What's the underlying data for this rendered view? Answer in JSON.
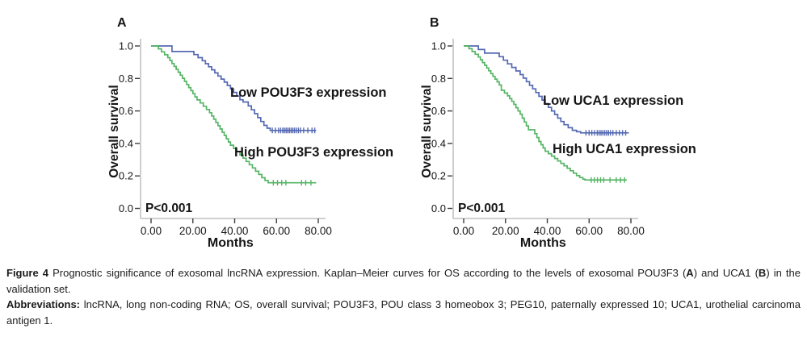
{
  "figure": {
    "caption": {
      "paragraphs": [
        {
          "segments": [
            {
              "text": "Figure 4 ",
              "bold": true
            },
            {
              "text": "Prognostic significance of exosomal lncRNA expression. Kaplan–Meier curves for OS according to the levels of exosomal POU3F3 (",
              "bold": false
            },
            {
              "text": "A",
              "bold": true
            },
            {
              "text": ") and UCA1 (",
              "bold": false
            },
            {
              "text": "B",
              "bold": true
            },
            {
              "text": ") in the validation set.",
              "bold": false
            }
          ]
        },
        {
          "segments": [
            {
              "text": "Abbreviations: ",
              "bold": true
            },
            {
              "text": "lncRNA, long non-coding RNA; OS, overall survival; POU3F3, POU class 3 homeobox 3; PEG10, paternally expressed 10; UCA1, urothelial carcinoma antigen 1.",
              "bold": false
            }
          ]
        }
      ]
    },
    "colors": {
      "low_curve": "#5569b3",
      "high_curve": "#55b565",
      "axis_line": "#b4b4b4",
      "tick_mark": "#3d3d3d",
      "text": "#161616"
    }
  },
  "chart_data": [
    {
      "type": "line",
      "subtype": "kaplan_meier_step",
      "panel_label": "A",
      "title": "",
      "xlabel": "Months",
      "ylabel": "Overall survival",
      "annotation": "P<0.001",
      "xlim": [
        0,
        83
      ],
      "ylim": [
        0,
        1.05
      ],
      "grid": false,
      "x_tick_values": [
        0,
        20,
        40,
        60,
        80
      ],
      "x_tick_labels": [
        "0.00",
        "20.00",
        "40.00",
        "60.00",
        "80.00"
      ],
      "y_tick_values": [
        0,
        0.2,
        0.4,
        0.6,
        0.8,
        1.0
      ],
      "y_tick_labels": [
        "0.0",
        "0.2",
        "0.4",
        "0.6",
        "0.8",
        "1.0"
      ],
      "series": [
        {
          "name": "Low POU3F3 expression",
          "color": "#5569b3",
          "end_time": 79,
          "steps": [
            [
              0,
              1.0
            ],
            [
              10,
              0.966
            ],
            [
              20.5,
              0.947
            ],
            [
              22.5,
              0.928
            ],
            [
              24.5,
              0.909
            ],
            [
              26,
              0.891
            ],
            [
              27.5,
              0.872
            ],
            [
              29,
              0.853
            ],
            [
              30.5,
              0.834
            ],
            [
              32,
              0.815
            ],
            [
              33.5,
              0.796
            ],
            [
              35,
              0.777
            ],
            [
              36.5,
              0.757
            ],
            [
              38,
              0.736
            ],
            [
              39.5,
              0.714
            ],
            [
              41,
              0.692
            ],
            [
              42.5,
              0.669
            ],
            [
              44,
              0.655
            ],
            [
              46.5,
              0.631
            ],
            [
              48,
              0.607
            ],
            [
              49.5,
              0.583
            ],
            [
              51,
              0.559
            ],
            [
              52.5,
              0.535
            ],
            [
              54,
              0.511
            ],
            [
              55.5,
              0.494
            ],
            [
              57,
              0.48
            ]
          ],
          "censor_value": 0.48,
          "censor_times": [
            58,
            59.5,
            61,
            62,
            63,
            63.8,
            64.6,
            65.4,
            66.2,
            67,
            67.8,
            68.6,
            69.5,
            70.5,
            71.5,
            73,
            75,
            77,
            78.3
          ]
        },
        {
          "name": "High POU3F3 expression",
          "color": "#55b565",
          "end_time": 79,
          "steps": [
            [
              0,
              1.0
            ],
            [
              3.5,
              0.982
            ],
            [
              5,
              0.964
            ],
            [
              6.5,
              0.946
            ],
            [
              8,
              0.928
            ],
            [
              9,
              0.91
            ],
            [
              10,
              0.892
            ],
            [
              11,
              0.874
            ],
            [
              12,
              0.856
            ],
            [
              13,
              0.838
            ],
            [
              14,
              0.82
            ],
            [
              15,
              0.801
            ],
            [
              16,
              0.782
            ],
            [
              17,
              0.763
            ],
            [
              18,
              0.744
            ],
            [
              19,
              0.725
            ],
            [
              20,
              0.706
            ],
            [
              21,
              0.687
            ],
            [
              22,
              0.668
            ],
            [
              23.5,
              0.649
            ],
            [
              25,
              0.629
            ],
            [
              26.5,
              0.609
            ],
            [
              28,
              0.589
            ],
            [
              29,
              0.569
            ],
            [
              30,
              0.549
            ],
            [
              31,
              0.529
            ],
            [
              32,
              0.509
            ],
            [
              33,
              0.489
            ],
            [
              34,
              0.469
            ],
            [
              35,
              0.449
            ],
            [
              36,
              0.429
            ],
            [
              37,
              0.409
            ],
            [
              38,
              0.389
            ],
            [
              39.5,
              0.369
            ],
            [
              41,
              0.349
            ],
            [
              42.5,
              0.329
            ],
            [
              44,
              0.309
            ],
            [
              45.5,
              0.289
            ],
            [
              47,
              0.269
            ],
            [
              48.5,
              0.249
            ],
            [
              50,
              0.229
            ],
            [
              51.5,
              0.209
            ],
            [
              53,
              0.189
            ],
            [
              54.5,
              0.172
            ],
            [
              56,
              0.158
            ]
          ],
          "censor_value": 0.158,
          "censor_times": [
            58.5,
            60.5,
            62.5,
            64.5,
            72,
            74,
            76.5
          ]
        }
      ]
    },
    {
      "type": "line",
      "subtype": "kaplan_meier_step",
      "panel_label": "B",
      "title": "",
      "xlabel": "Months",
      "ylabel": "Overall survival",
      "annotation": "P<0.001",
      "xlim": [
        0,
        83
      ],
      "ylim": [
        0,
        1.05
      ],
      "grid": false,
      "x_tick_values": [
        0,
        20,
        40,
        60,
        80
      ],
      "x_tick_labels": [
        "0.00",
        "20.00",
        "40.00",
        "60.00",
        "80.00"
      ],
      "y_tick_values": [
        0,
        0.2,
        0.4,
        0.6,
        0.8,
        1.0
      ],
      "y_tick_labels": [
        "0.0",
        "0.2",
        "0.4",
        "0.6",
        "0.8",
        "1.0"
      ],
      "series": [
        {
          "name": "Low UCA1 expression",
          "color": "#5569b3",
          "end_time": 79,
          "steps": [
            [
              0,
              1.0
            ],
            [
              7,
              0.978
            ],
            [
              10,
              0.956
            ],
            [
              17,
              0.934
            ],
            [
              19,
              0.912
            ],
            [
              21,
              0.89
            ],
            [
              23,
              0.868
            ],
            [
              25,
              0.846
            ],
            [
              27,
              0.824
            ],
            [
              28.5,
              0.802
            ],
            [
              30,
              0.78
            ],
            [
              31.5,
              0.758
            ],
            [
              33,
              0.736
            ],
            [
              34.5,
              0.713
            ],
            [
              36,
              0.69
            ],
            [
              37.5,
              0.667
            ],
            [
              39,
              0.645
            ],
            [
              40.5,
              0.622
            ],
            [
              42,
              0.6
            ],
            [
              43.5,
              0.578
            ],
            [
              45,
              0.556
            ],
            [
              46.5,
              0.535
            ],
            [
              48,
              0.515
            ],
            [
              50,
              0.497
            ],
            [
              52,
              0.481
            ],
            [
              54,
              0.472
            ],
            [
              56,
              0.465
            ]
          ],
          "censor_value": 0.465,
          "censor_times": [
            58.5,
            60,
            61.3,
            62.6,
            63.9,
            64.8,
            65.7,
            66.6,
            67.5,
            68.4,
            69.3,
            70.2,
            71.4,
            73,
            74.5,
            76,
            77.5
          ]
        },
        {
          "name": "High UCA1 expression",
          "color": "#55b565",
          "end_time": 78,
          "steps": [
            [
              0,
              1.0
            ],
            [
              2.5,
              0.983
            ],
            [
              4,
              0.966
            ],
            [
              5.5,
              0.949
            ],
            [
              7,
              0.932
            ],
            [
              8,
              0.915
            ],
            [
              9,
              0.898
            ],
            [
              10,
              0.881
            ],
            [
              11,
              0.864
            ],
            [
              12,
              0.847
            ],
            [
              13,
              0.83
            ],
            [
              14,
              0.813
            ],
            [
              15,
              0.796
            ],
            [
              16,
              0.779
            ],
            [
              17,
              0.76
            ],
            [
              18,
              0.727
            ],
            [
              19.5,
              0.71
            ],
            [
              21,
              0.693
            ],
            [
              22,
              0.676
            ],
            [
              23,
              0.659
            ],
            [
              24,
              0.64
            ],
            [
              25,
              0.62
            ],
            [
              26,
              0.6
            ],
            [
              27,
              0.58
            ],
            [
              28,
              0.556
            ],
            [
              29,
              0.532
            ],
            [
              30,
              0.508
            ],
            [
              31,
              0.484
            ],
            [
              34,
              0.46
            ],
            [
              35,
              0.436
            ],
            [
              36,
              0.412
            ],
            [
              37,
              0.392
            ],
            [
              38,
              0.372
            ],
            [
              39,
              0.352
            ],
            [
              40.5,
              0.337
            ],
            [
              42,
              0.322
            ],
            [
              43.5,
              0.307
            ],
            [
              45,
              0.292
            ],
            [
              46.5,
              0.277
            ],
            [
              48,
              0.262
            ],
            [
              49.5,
              0.247
            ],
            [
              51,
              0.232
            ],
            [
              52.5,
              0.217
            ],
            [
              54,
              0.202
            ],
            [
              55.5,
              0.19
            ],
            [
              57,
              0.18
            ],
            [
              58,
              0.175
            ]
          ],
          "censor_value": 0.175,
          "censor_times": [
            61,
            62.5,
            64,
            65.5,
            67,
            70,
            73,
            75,
            77
          ]
        }
      ]
    }
  ]
}
